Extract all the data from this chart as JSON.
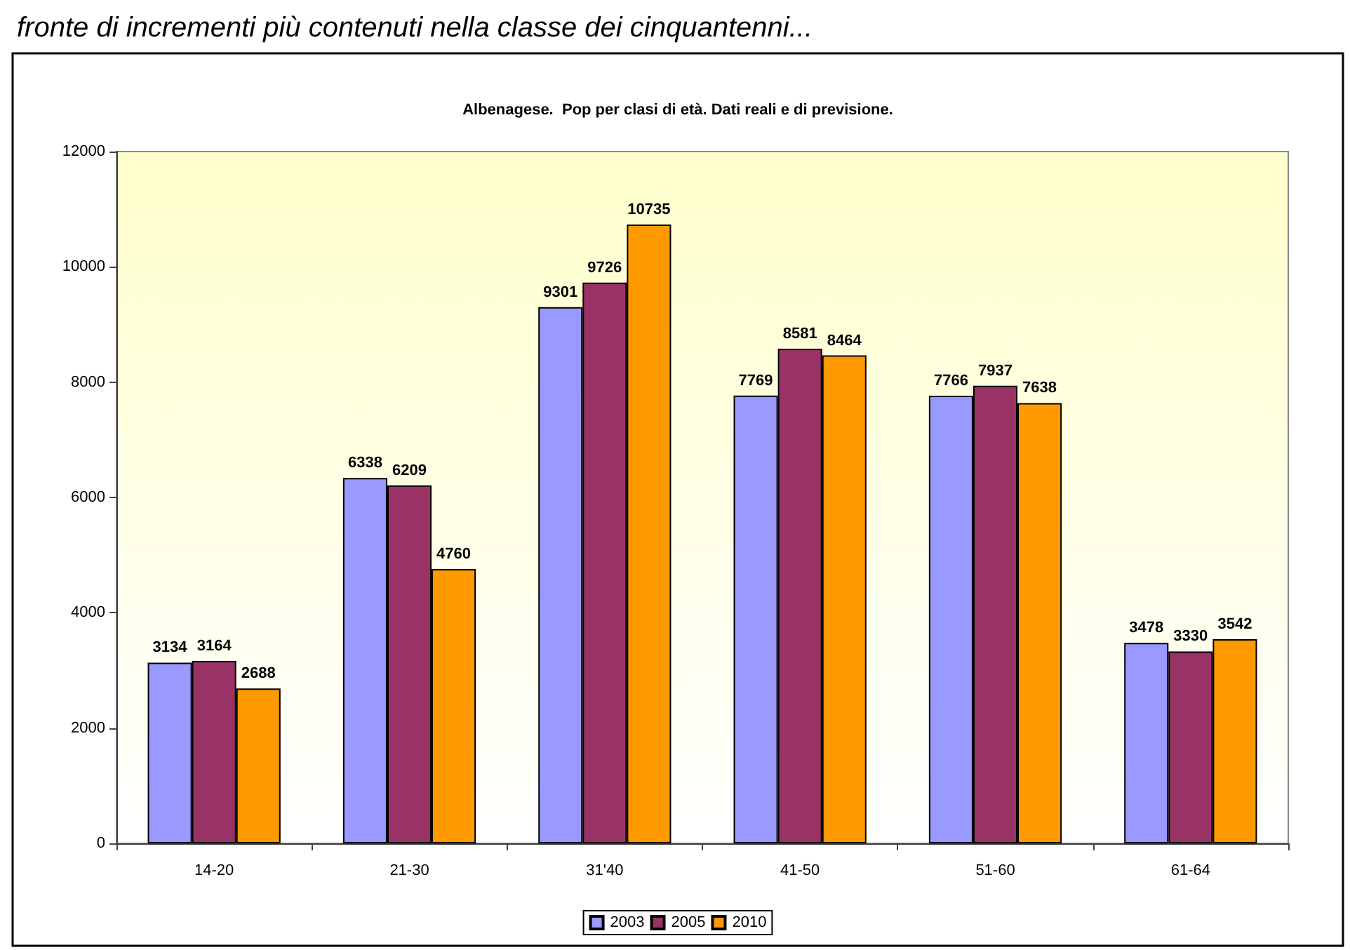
{
  "chart_data": {
    "type": "bar",
    "title": "Albenagese.  Pop per clasi di età. Dati reali e di previsione.",
    "annotations": [
      "fronte di incrementi più contenuti nella classe dei cinquantenni..."
    ],
    "categories": [
      "14-20",
      "21-30",
      "31'40",
      "41-50",
      "51-60",
      "61-64"
    ],
    "series": [
      {
        "name": "2003",
        "color": "#9999ff",
        "values": [
          3134,
          6338,
          9301,
          7769,
          7766,
          3478
        ]
      },
      {
        "name": "2005",
        "color": "#993366",
        "values": [
          3164,
          6209,
          9726,
          8581,
          7937,
          3330
        ]
      },
      {
        "name": "2010",
        "color": "#ff9900",
        "values": [
          2688,
          4760,
          10735,
          8464,
          7638,
          3542
        ]
      }
    ],
    "ylim": [
      0,
      12000
    ],
    "yticks": [
      0,
      2000,
      4000,
      6000,
      8000,
      10000,
      12000
    ],
    "grid": false,
    "legend": "bottom",
    "data_labels": true
  }
}
